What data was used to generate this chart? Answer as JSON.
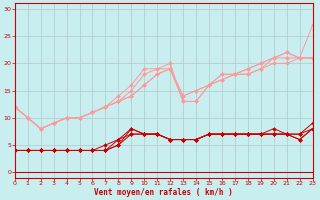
{
  "bg_color": "#c8eef0",
  "grid_color": "#b0c8c8",
  "xlabel": "Vent moyen/en rafales ( km/h )",
  "xlabel_color": "#cc0000",
  "tick_label_color": "#cc0000",
  "axis_color": "#cc0000",
  "ylim": [
    -1,
    31
  ],
  "xlim": [
    0,
    23
  ],
  "yticks": [
    0,
    5,
    10,
    15,
    20,
    25,
    30
  ],
  "xticks": [
    0,
    1,
    2,
    3,
    4,
    5,
    6,
    7,
    8,
    9,
    10,
    11,
    12,
    13,
    14,
    15,
    16,
    17,
    18,
    19,
    20,
    21,
    22,
    23
  ],
  "light_lines": [
    {
      "x": [
        0,
        1,
        2,
        3,
        4,
        5,
        6,
        7,
        8,
        9,
        10,
        11,
        12,
        13,
        14,
        15,
        16,
        17,
        18,
        19,
        20,
        21,
        22,
        23
      ],
      "y": [
        12,
        10,
        8,
        9,
        10,
        10,
        11,
        12,
        13,
        14,
        16,
        18,
        19,
        14,
        15,
        16,
        17,
        18,
        19,
        20,
        21,
        22,
        21,
        27
      ]
    },
    {
      "x": [
        0,
        1,
        2,
        3,
        4,
        5,
        6,
        7,
        8,
        9,
        10,
        11,
        12,
        13,
        14,
        15,
        16,
        17,
        18,
        19,
        20,
        21,
        22,
        23
      ],
      "y": [
        12,
        10,
        8,
        9,
        10,
        10,
        11,
        12,
        13,
        14,
        16,
        18,
        19,
        14,
        15,
        16,
        17,
        18,
        19,
        20,
        21,
        22,
        21,
        21
      ]
    },
    {
      "x": [
        0,
        1,
        2,
        3,
        4,
        5,
        6,
        7,
        8,
        9,
        10,
        11,
        12,
        13,
        14,
        15,
        16,
        17,
        18,
        19,
        20,
        21,
        22,
        23
      ],
      "y": [
        12,
        10,
        8,
        9,
        10,
        10,
        11,
        12,
        13,
        15,
        18,
        19,
        20,
        13,
        13,
        16,
        18,
        18,
        18,
        19,
        20,
        20,
        21,
        21
      ]
    },
    {
      "x": [
        0,
        1,
        2,
        3,
        4,
        5,
        6,
        7,
        8,
        9,
        10,
        11,
        12,
        13,
        14,
        15,
        16,
        17,
        18,
        19,
        20,
        21,
        22,
        23
      ],
      "y": [
        12,
        10,
        8,
        9,
        10,
        10,
        11,
        12,
        14,
        16,
        19,
        19,
        19,
        13,
        13,
        16,
        18,
        18,
        18,
        19,
        21,
        21,
        21,
        21
      ]
    }
  ],
  "dark_lines": [
    {
      "x": [
        0,
        1,
        2,
        3,
        4,
        5,
        6,
        7,
        8,
        9,
        10,
        11,
        12,
        13,
        14,
        15,
        16,
        17,
        18,
        19,
        20,
        21,
        22,
        23
      ],
      "y": [
        4,
        4,
        4,
        4,
        4,
        4,
        4,
        4,
        5,
        8,
        7,
        7,
        6,
        6,
        6,
        7,
        7,
        7,
        7,
        7,
        8,
        7,
        6,
        8
      ]
    },
    {
      "x": [
        0,
        1,
        2,
        3,
        4,
        5,
        6,
        7,
        8,
        9,
        10,
        11,
        12,
        13,
        14,
        15,
        16,
        17,
        18,
        19,
        20,
        21,
        22,
        23
      ],
      "y": [
        4,
        4,
        4,
        4,
        4,
        4,
        4,
        5,
        6,
        7,
        7,
        7,
        6,
        6,
        6,
        7,
        7,
        7,
        7,
        7,
        7,
        7,
        6,
        8
      ]
    },
    {
      "x": [
        0,
        1,
        2,
        3,
        4,
        5,
        6,
        7,
        8,
        9,
        10,
        11,
        12,
        13,
        14,
        15,
        16,
        17,
        18,
        19,
        20,
        21,
        22,
        23
      ],
      "y": [
        4,
        4,
        4,
        4,
        4,
        4,
        4,
        4,
        5,
        7,
        7,
        7,
        6,
        6,
        6,
        7,
        7,
        7,
        7,
        7,
        7,
        7,
        7,
        8
      ]
    },
    {
      "x": [
        0,
        1,
        2,
        3,
        4,
        5,
        6,
        7,
        8,
        9,
        10,
        11,
        12,
        13,
        14,
        15,
        16,
        17,
        18,
        19,
        20,
        21,
        22,
        23
      ],
      "y": [
        4,
        4,
        4,
        4,
        4,
        4,
        4,
        4,
        6,
        8,
        7,
        7,
        6,
        6,
        6,
        7,
        7,
        7,
        7,
        7,
        7,
        7,
        7,
        9
      ]
    }
  ],
  "light_line_color": "#ff9999",
  "dark_line_color": "#cc0000",
  "marker_size": 2,
  "line_width": 0.7
}
